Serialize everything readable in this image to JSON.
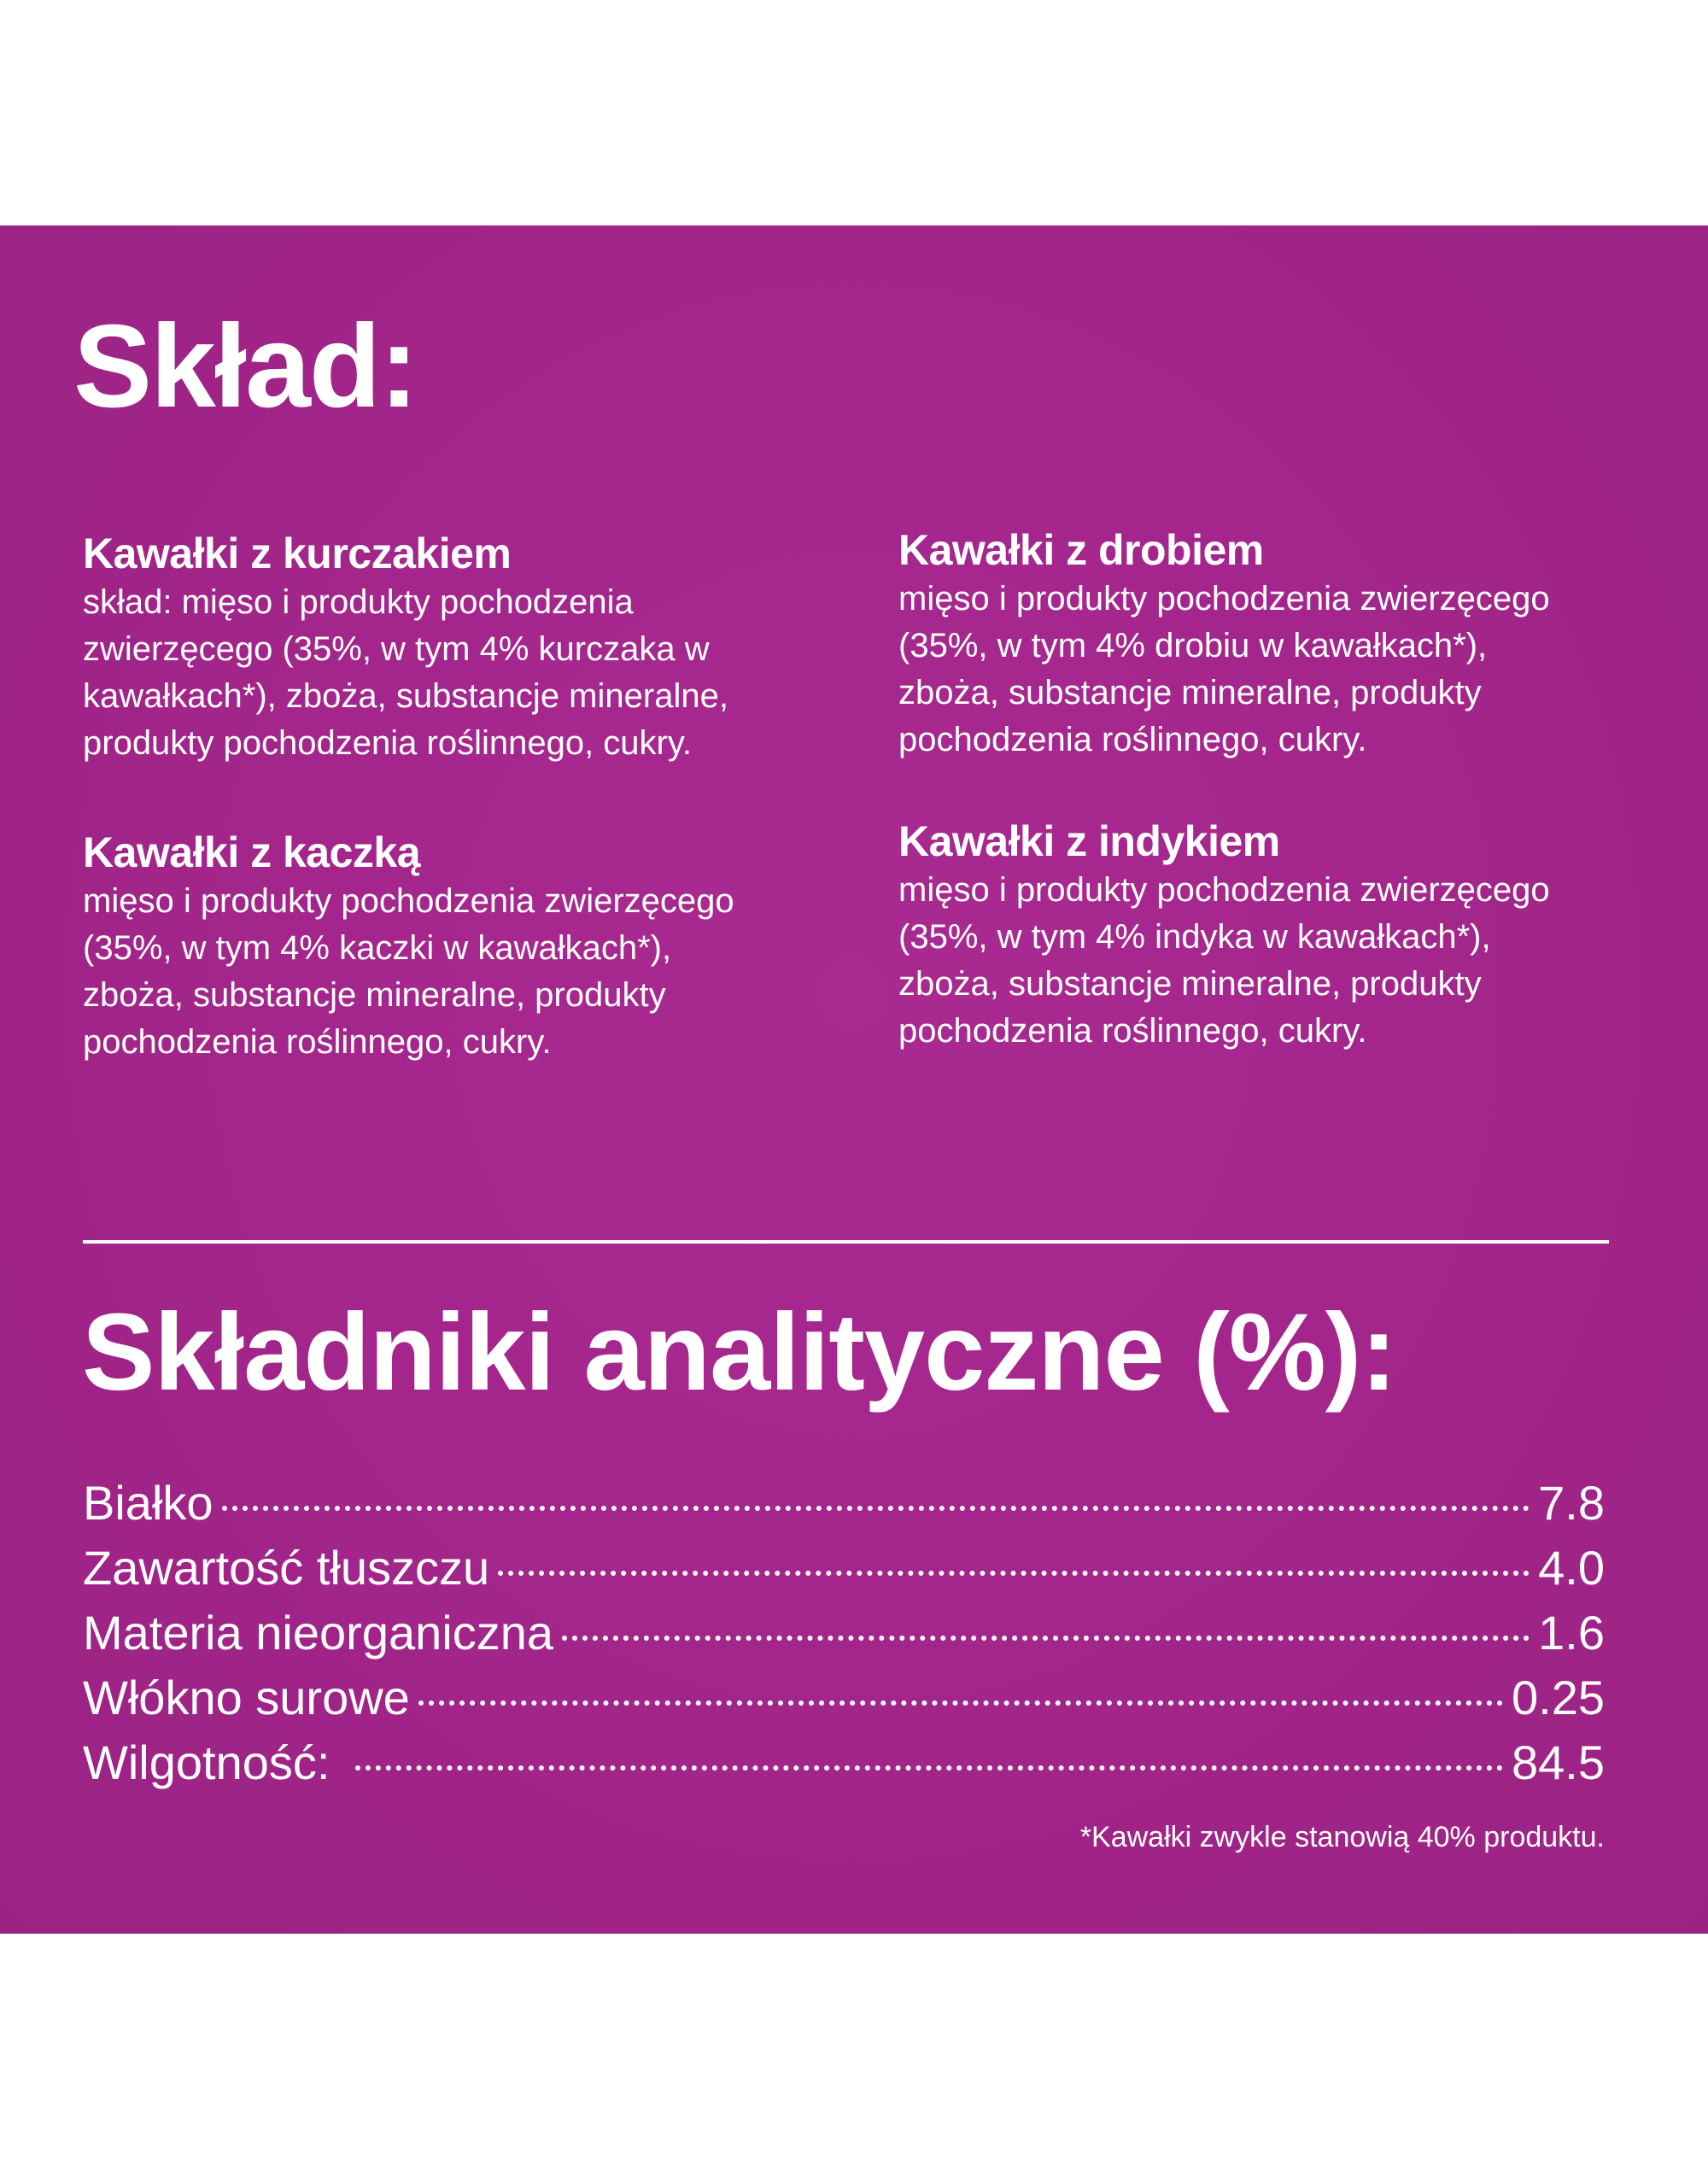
{
  "colors": {
    "background": "#a4268c",
    "text": "#ffffff",
    "page": "#ffffff"
  },
  "composition": {
    "title": "Skład:",
    "sections": [
      {
        "heading": "Kawałki z kurczakiem",
        "lines": [
          "skład: mięso i produkty pochodzenia",
          "zwierzęcego (35%, w tym 4% kurczaka w",
          "kawałkach*), zboża, substancje mineralne,",
          "produkty pochodzenia  roślinnego, cukry."
        ]
      },
      {
        "heading": "Kawałki z drobiem",
        "lines": [
          "mięso i produkty pochodzenia zwierzęcego",
          "(35%, w tym 4% drobiu w kawałkach*),",
          "zboża, substancje mineralne, produkty",
          "pochodzenia  roślinnego, cukry."
        ]
      },
      {
        "heading": "Kawałki z kaczką",
        "lines": [
          "mięso i produkty pochodzenia zwierzęcego",
          "(35%, w tym 4% kaczki w kawałkach*),",
          "zboża, substancje mineralne, produkty",
          "pochodzenia  roślinnego, cukry."
        ]
      },
      {
        "heading": "Kawałki z indykiem",
        "lines": [
          "mięso i produkty pochodzenia zwierzęcego",
          "(35%, w tym 4% indyka w kawałkach*),",
          "zboża, substancje mineralne, produkty",
          "pochodzenia  roślinnego, cukry."
        ]
      }
    ]
  },
  "analytics": {
    "title": "Składniki analityczne (%):",
    "rows": [
      {
        "label": "Białko",
        "value": "7.8"
      },
      {
        "label": "Zawartość tłuszczu",
        "value": "4.0"
      },
      {
        "label": "Materia nieorganiczna",
        "value": "1.6"
      },
      {
        "label": "Włókno surowe",
        "value": "0.25"
      },
      {
        "label": "Wilgotność:",
        "value": "84.5"
      }
    ],
    "footnote": "*Kawałki zwykle stanowią 40% produktu."
  }
}
